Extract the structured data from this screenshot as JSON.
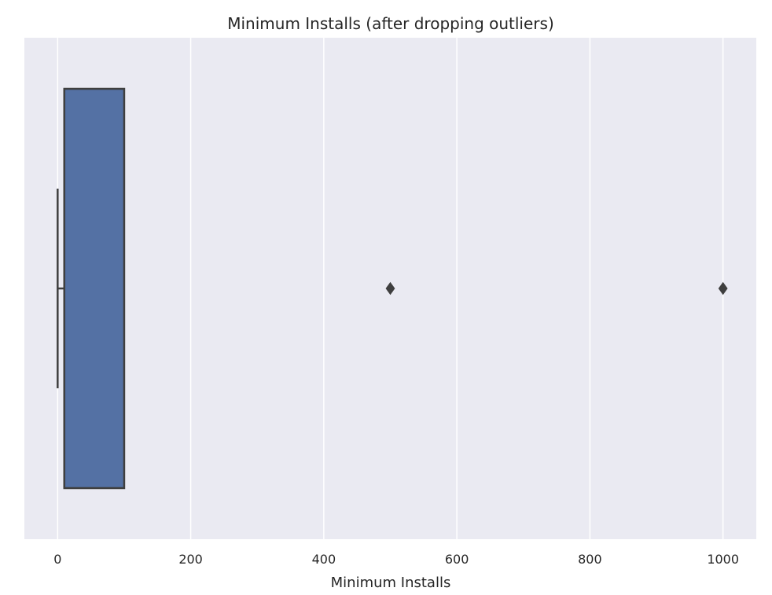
{
  "chart_data": {
    "type": "boxplot",
    "orientation": "horizontal",
    "title": "Minimum Installs (after dropping outliers)",
    "xlabel": "Minimum Installs",
    "ylabel": "",
    "xlim": [
      -50,
      1050
    ],
    "xticks": [
      0,
      200,
      400,
      600,
      800,
      1000
    ],
    "xtick_labels": [
      "0",
      "200",
      "400",
      "600",
      "800",
      "1000"
    ],
    "grid": true,
    "series": [
      {
        "whisker_low": 0,
        "q1": 10,
        "median": 10,
        "q3": 100,
        "whisker_high": 100,
        "outliers": [
          500,
          1000
        ]
      }
    ],
    "colors": {
      "box_fill": "#5471a4",
      "line": "#3f3f3f",
      "plot_background": "#eaeaf2",
      "grid": "#ffffff"
    }
  }
}
